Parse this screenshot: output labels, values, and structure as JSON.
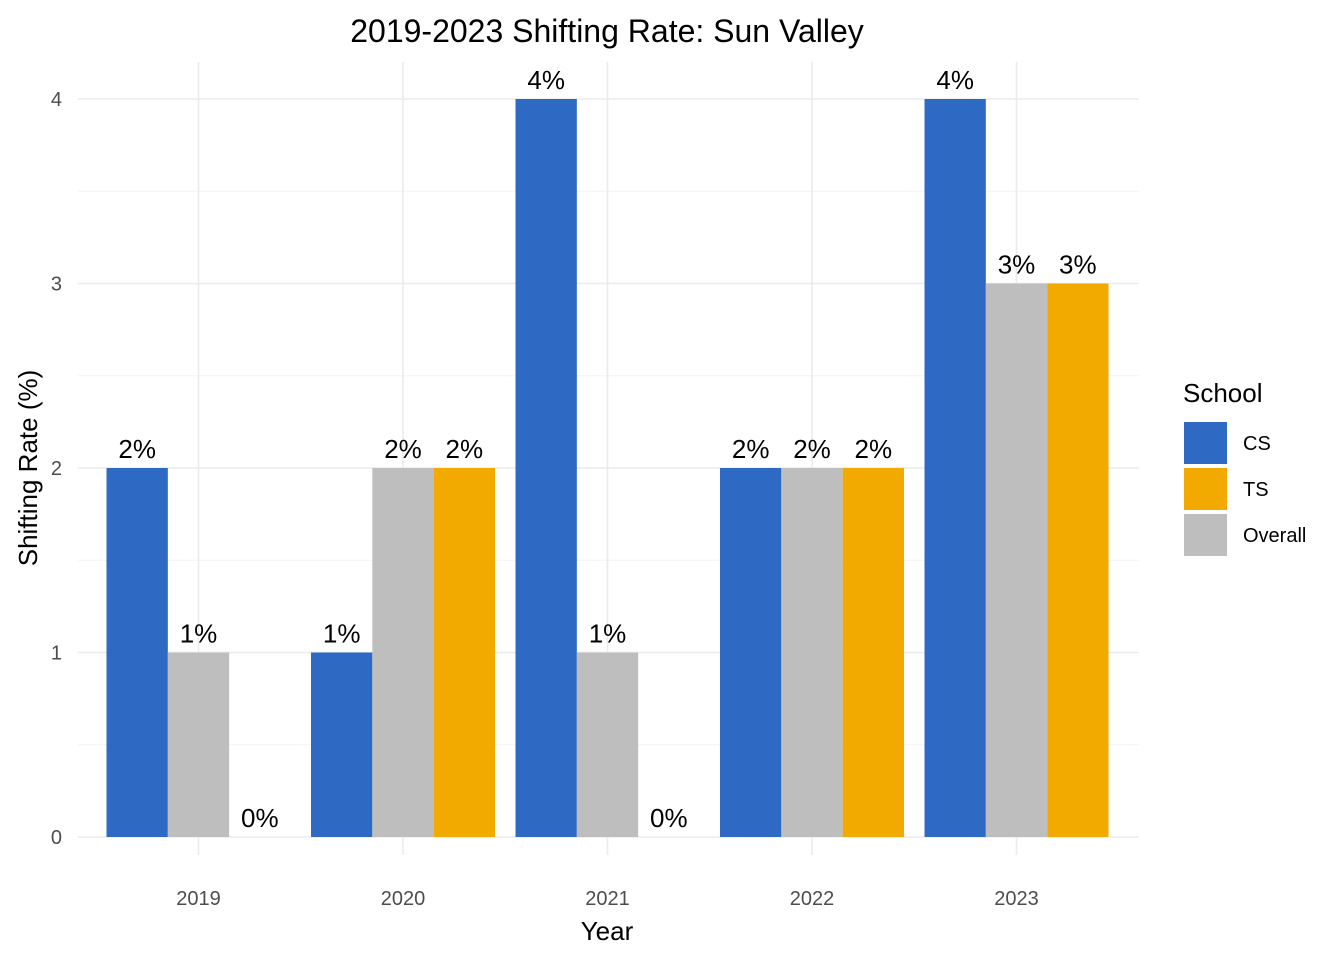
{
  "chart_data": {
    "type": "bar",
    "title": "2019-2023 Shifting Rate: Sun Valley",
    "xlabel": "Year",
    "ylabel": "Shifting Rate (%)",
    "categories": [
      "2019",
      "2020",
      "2021",
      "2022",
      "2023"
    ],
    "ylim": [
      0,
      4
    ],
    "yticks": [
      0,
      1,
      2,
      3,
      4
    ],
    "grid": true,
    "legend": {
      "title": "School",
      "position": "right"
    },
    "series": [
      {
        "name": "CS",
        "color": "#2e69c4",
        "values": [
          2,
          1,
          4,
          2,
          4
        ],
        "labels": [
          "2%",
          "1%",
          "4%",
          "2%",
          "4%"
        ]
      },
      {
        "name": "Overall",
        "color": "#bebebe",
        "values": [
          1,
          2,
          1,
          2,
          3
        ],
        "labels": [
          "1%",
          "2%",
          "1%",
          "2%",
          "3%"
        ]
      },
      {
        "name": "TS",
        "color": "#f2a900",
        "values": [
          0,
          2,
          0,
          2,
          3
        ],
        "labels": [
          "0%",
          "2%",
          "0%",
          "2%",
          "3%"
        ]
      }
    ],
    "legend_order": [
      "CS",
      "TS",
      "Overall"
    ]
  }
}
